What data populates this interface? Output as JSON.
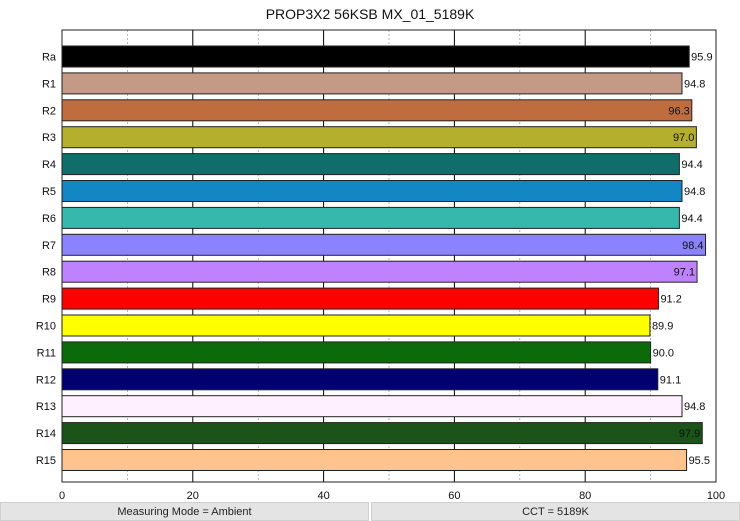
{
  "chart_data": {
    "type": "bar",
    "orientation": "horizontal",
    "title": "PROP3X2 56KSB MX_01_5189K",
    "categories": [
      "Ra",
      "R1",
      "R2",
      "R3",
      "R4",
      "R5",
      "R6",
      "R7",
      "R8",
      "R9",
      "R10",
      "R11",
      "R12",
      "R13",
      "R14",
      "R15"
    ],
    "values": [
      95.9,
      94.8,
      96.3,
      97.0,
      94.4,
      94.8,
      94.4,
      98.4,
      97.1,
      91.2,
      89.9,
      90.0,
      91.1,
      94.8,
      97.9,
      95.5
    ],
    "value_labels": [
      "95.9",
      "94.8",
      "96.3",
      "97.0",
      "94.4",
      "94.8",
      "94.4",
      "98.4",
      "97.1",
      "91.2",
      "89.9",
      "90.0",
      "91.1",
      "94.8",
      "97.9",
      "95.5"
    ],
    "colors": [
      "#000000",
      "#c49a86",
      "#bf6d3f",
      "#b4b02e",
      "#0f6e6a",
      "#1386c4",
      "#36b8ad",
      "#8a82ff",
      "#bf82ff",
      "#ff0000",
      "#ffff00",
      "#0b6b0b",
      "#000070",
      "#fff0ff",
      "#1a5418",
      "#ffc48e"
    ],
    "xlim": [
      0,
      100
    ],
    "xticks": [
      "0",
      "20",
      "40",
      "60",
      "80",
      "100"
    ],
    "grid": true
  },
  "footer": {
    "mode": "Measuring Mode = Ambient",
    "cct": "CCT = 5189K"
  }
}
